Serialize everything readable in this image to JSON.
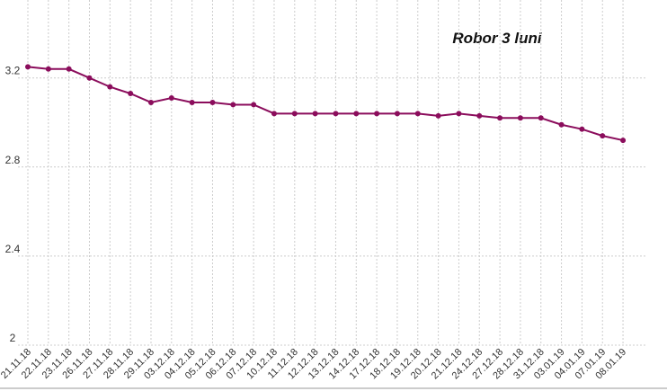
{
  "chart_data": {
    "type": "line",
    "title": "Robor 3 luni",
    "categories": [
      "21.11.18",
      "22.11.18",
      "23.11.18",
      "26.11.18",
      "27.11.18",
      "28.11.18",
      "29.11.18",
      "03.12.18",
      "04.12.18",
      "05.12.18",
      "06.12.18",
      "07.12.18",
      "10.12.18",
      "11.12.18",
      "12.12.18",
      "13.12.18",
      "14.12.18",
      "17.12.18",
      "18.12.18",
      "19.12.18",
      "20.12.18",
      "21.12.18",
      "24.12.18",
      "27.12.18",
      "28.12.18",
      "31.12.18",
      "03.01.19",
      "04.01.19",
      "07.01.19",
      "08.01.19"
    ],
    "series": [
      {
        "color": "#8b0d5c",
        "values": [
          3.25,
          3.24,
          3.24,
          3.2,
          3.16,
          3.13,
          3.09,
          3.11,
          3.09,
          3.09,
          3.08,
          3.08,
          3.04,
          3.04,
          3.04,
          3.04,
          3.04,
          3.04,
          3.04,
          3.04,
          3.03,
          3.04,
          3.03,
          3.02,
          3.02,
          3.02,
          2.99,
          2.97,
          2.94,
          2.92
        ]
      }
    ],
    "ylim": [
      2,
      3.55
    ],
    "yticks": [
      2,
      2.4,
      2.8,
      3.2
    ],
    "grid": true
  }
}
